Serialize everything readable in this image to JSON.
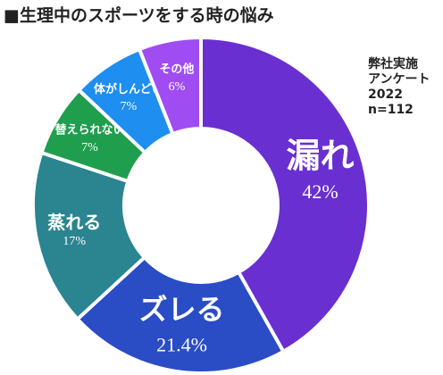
{
  "chart_data": {
    "type": "donut",
    "title": "■生理中のスポーツをする時の悩み",
    "note": [
      "弊社実施",
      "アンケート",
      "2022",
      "n=112"
    ],
    "categories": [
      "漏れ",
      "ズレる",
      "蒸れる",
      "替えられない",
      "体がしんどい",
      "その他"
    ],
    "values": [
      42,
      21.4,
      17,
      7,
      7,
      6
    ],
    "value_labels": [
      "42%",
      "21.4%",
      "17%",
      "7%",
      "7%",
      "6%"
    ],
    "colors": [
      "#6a2fd0",
      "#2a4cc4",
      "#2a8590",
      "#1f9e4e",
      "#1e8ef0",
      "#9f4df2"
    ]
  }
}
